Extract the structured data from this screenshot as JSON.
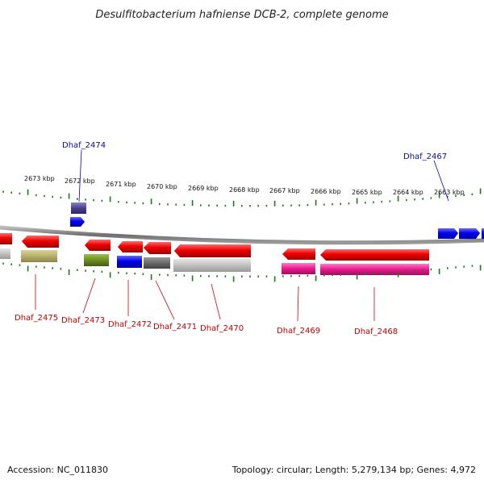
{
  "title": "Desulfitobacterium hafniense DCB-2, complete genome",
  "footer": {
    "accession": "Accession: NC_011830",
    "summary": "Topology: circular; Length: 5,279,134 bp; Genes: 4,972"
  },
  "ruler": {
    "labels": [
      "2673 kbp",
      "2672 kbp",
      "2671 kbp",
      "2670 kbp",
      "2669 kbp",
      "2668 kbp",
      "2667 kbp",
      "2666 kbp",
      "2665 kbp",
      "2664 kbp",
      "2663 kbp"
    ]
  },
  "genes_top_labels": [
    {
      "id": "dhaf-2474",
      "label": "Dhaf_2474",
      "color": "#0a0aa0"
    },
    {
      "id": "dhaf-2467",
      "label": "Dhaf_2467",
      "color": "#0a0aa0"
    }
  ],
  "genes_bottom_labels": [
    {
      "id": "dhaf-2475",
      "label": "Dhaf_2475",
      "color": "#c00000"
    },
    {
      "id": "dhaf-2473",
      "label": "Dhaf_2473",
      "color": "#c00000"
    },
    {
      "id": "dhaf-2472",
      "label": "Dhaf_2472",
      "color": "#c00000"
    },
    {
      "id": "dhaf-2471",
      "label": "Dhaf_2471",
      "color": "#c00000"
    },
    {
      "id": "dhaf-2470",
      "label": "Dhaf_2470",
      "color": "#c00000"
    },
    {
      "id": "dhaf-2469",
      "label": "Dhaf_2469",
      "color": "#c00000"
    },
    {
      "id": "dhaf-2468",
      "label": "Dhaf_2468",
      "color": "#c00000"
    }
  ],
  "colors": {
    "forward_gene": "#0000ee",
    "reverse_gene": "#ee0000",
    "backbone": "#808080",
    "tick": "#1a7a1a"
  }
}
